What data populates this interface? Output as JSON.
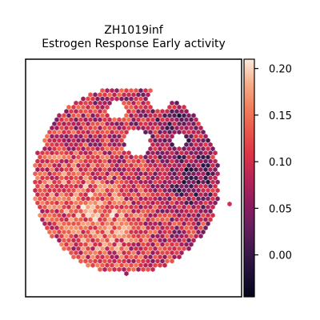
{
  "chart_data": {
    "type": "scatter",
    "title_line1": "ZH1019inf",
    "title_line2": "Estrogen Response Early activity",
    "xlabel": "",
    "ylabel": "",
    "grid": false,
    "point_shape": "hexagon",
    "colormap": "rocket",
    "colorbar": {
      "range": [
        -0.045,
        0.21
      ],
      "ticks": [
        0.0,
        0.05,
        0.1,
        0.15,
        0.2
      ],
      "tick_labels": [
        "0.00",
        "0.05",
        "0.10",
        "0.15",
        "0.20"
      ]
    },
    "spatial_regions": [
      {
        "region": "top",
        "mean_activity": 0.06
      },
      {
        "region": "top-right",
        "mean_activity": 0.03
      },
      {
        "region": "center",
        "mean_activity": 0.08
      },
      {
        "region": "left",
        "mean_activity": 0.13
      },
      {
        "region": "lower-center",
        "mean_activity": 0.15
      },
      {
        "region": "bottom",
        "mean_activity": 0.12
      },
      {
        "region": "right",
        "mean_activity": 0.04
      }
    ]
  },
  "colors": {
    "axes_frame": "#000000",
    "background": "#ffffff"
  }
}
